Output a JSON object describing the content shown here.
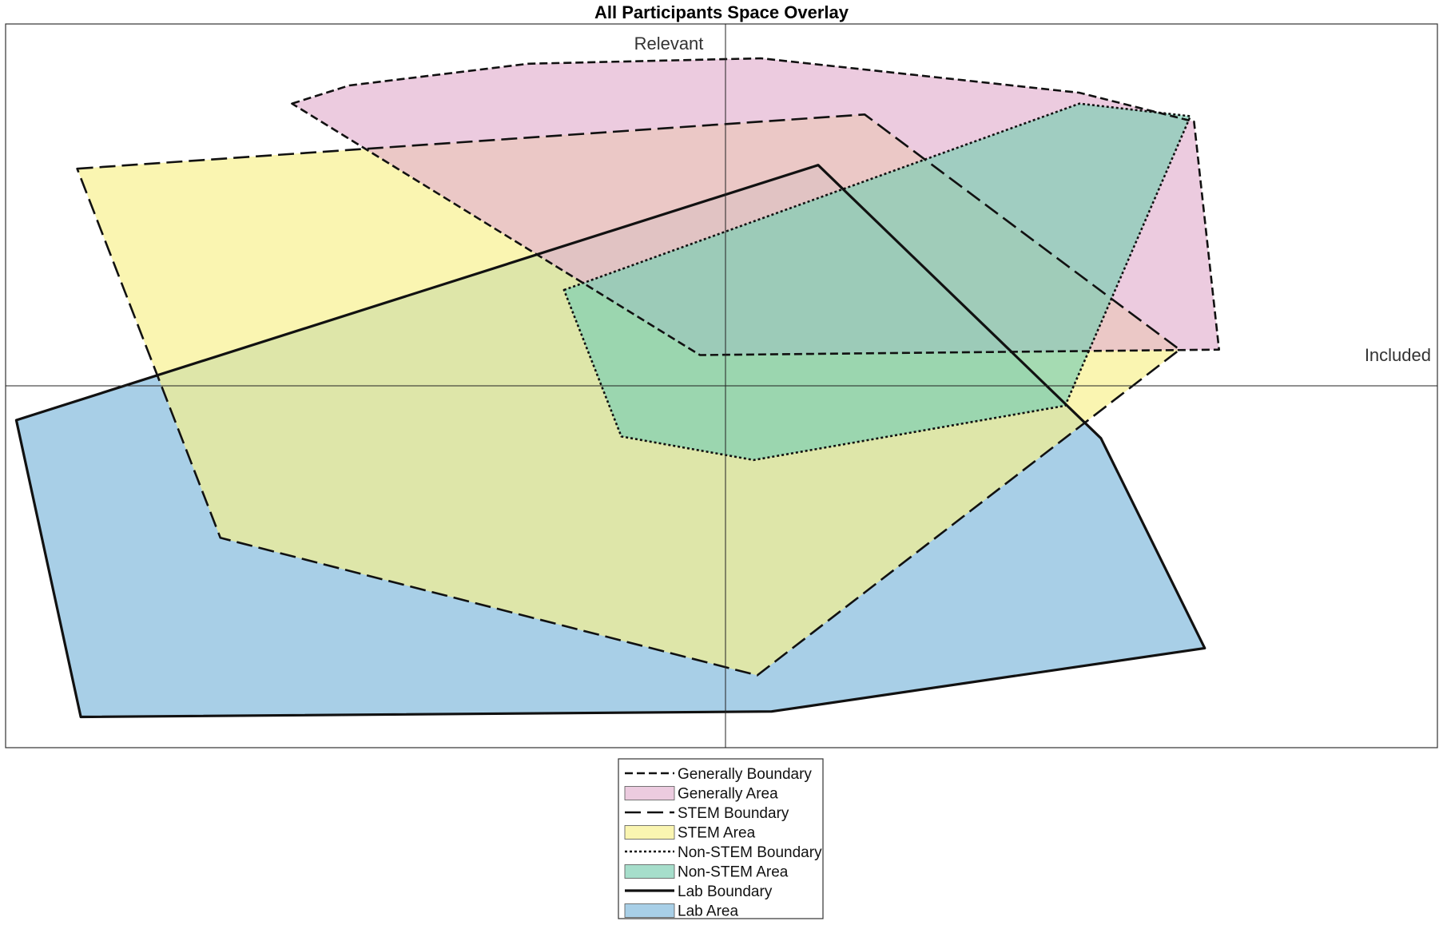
{
  "chart_data": {
    "type": "area",
    "title": "All Participants Space Overlay",
    "xlabel": "Included",
    "ylabel": "Relevant",
    "xlim": [
      -1,
      1
    ],
    "ylim": [
      -1,
      1
    ],
    "grid": false,
    "legend_position": "bottom-center",
    "series": [
      {
        "key": "generally",
        "boundary_label": "Generally Boundary",
        "area_label": "Generally Area",
        "fill": "#e3b3d0",
        "opacity": 0.68,
        "dash": "10,5",
        "stroke_width": 2.6,
        "points": [
          [
            -0.6,
            0.78
          ],
          [
            -0.52,
            0.83
          ],
          [
            -0.27,
            0.89
          ],
          [
            0.055,
            0.905
          ],
          [
            0.5,
            0.81
          ],
          [
            0.66,
            0.73
          ],
          [
            0.695,
            0.1
          ],
          [
            -0.03,
            0.085
          ]
        ]
      },
      {
        "key": "stem",
        "boundary_label": "STEM Boundary",
        "area_label": "STEM Area",
        "fill": "#f8f08c",
        "opacity": 0.68,
        "dash": "20,8",
        "stroke_width": 2.6,
        "points": [
          [
            -0.9,
            0.6
          ],
          [
            0.2,
            0.75
          ],
          [
            0.64,
            0.1
          ],
          [
            0.05,
            -0.8
          ],
          [
            -0.7,
            -0.42
          ]
        ]
      },
      {
        "key": "non_stem",
        "boundary_label": "Non-STEM Boundary",
        "area_label": "Non-STEM Area",
        "fill": "#7ccfb3",
        "opacity": 0.68,
        "dash": "3,3",
        "stroke_width": 2.6,
        "points": [
          [
            -0.22,
            0.265
          ],
          [
            0.5,
            0.78
          ],
          [
            0.655,
            0.745
          ],
          [
            0.48,
            -0.055
          ],
          [
            0.045,
            -0.205
          ],
          [
            -0.14,
            -0.14
          ]
        ]
      },
      {
        "key": "lab",
        "boundary_label": "Lab Boundary",
        "area_label": "Lab Area",
        "fill": "#8fc2e0",
        "opacity": 0.78,
        "dash": "",
        "stroke_width": 3.2,
        "points": [
          [
            -0.985,
            -0.095
          ],
          [
            0.135,
            0.61
          ],
          [
            0.53,
            -0.145
          ],
          [
            0.675,
            -0.725
          ],
          [
            0.07,
            -0.9
          ],
          [
            -0.895,
            -0.915
          ]
        ]
      }
    ],
    "draw_order": [
      "lab",
      "stem",
      "generally",
      "non_stem"
    ]
  }
}
